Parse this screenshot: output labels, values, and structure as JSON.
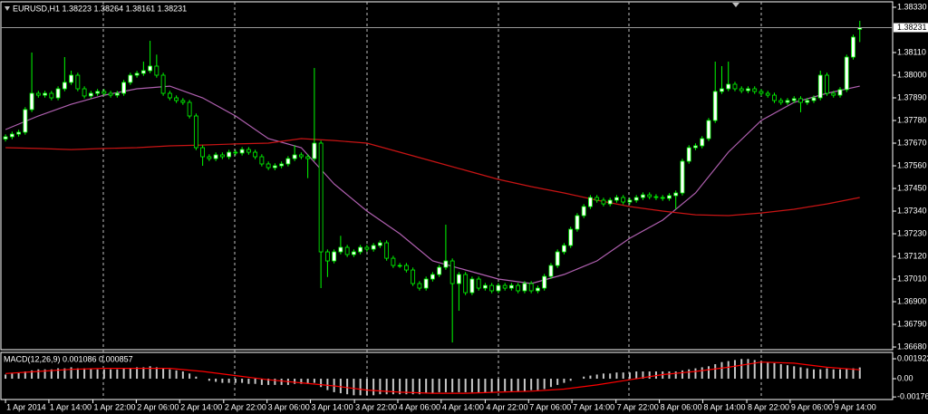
{
  "chart_data": [
    {
      "type": "candlestick",
      "title": "EURUSD,H1 1.38223 1.38264 1.38161 1.38231",
      "open": [
        1.3769,
        1.37701,
        1.37714,
        1.37723,
        1.37833,
        1.37912,
        1.37903,
        1.37912,
        1.3789,
        1.37934,
        1.37965,
        1.38,
        1.37934,
        1.37899,
        1.37912,
        1.37921,
        1.37912,
        1.37903,
        1.37912,
        1.37965,
        1.38,
        1.38009,
        1.38022,
        1.38044,
        1.38,
        1.37912,
        1.3789,
        1.37877,
        1.37868,
        1.37802,
        1.37648,
        1.37604,
        1.37595,
        1.37613,
        1.37604,
        1.37626,
        1.37622,
        1.37639,
        1.37626,
        1.37604,
        1.37569,
        1.37551,
        1.3756,
        1.37569,
        1.37595,
        1.37613,
        1.37604,
        1.37595,
        1.3767,
        1.37142,
        1.37098,
        1.37142,
        1.37164,
        1.37129,
        1.37142,
        1.37164,
        1.37155,
        1.37173,
        1.37186,
        1.37111,
        1.37076,
        1.37076,
        1.37054,
        1.36988,
        1.36966,
        1.3701,
        1.37032,
        1.37067,
        1.37098,
        1.36988,
        1.37032,
        1.36944,
        1.3701,
        1.36966,
        1.36979,
        1.36953,
        1.36979,
        1.36966,
        1.36979,
        1.36953,
        1.36988,
        1.36953,
        1.36966,
        1.37023,
        1.37076,
        1.37142,
        1.37173,
        1.37252,
        1.37318,
        1.37362,
        1.37406,
        1.37393,
        1.37375,
        1.37393,
        1.37406,
        1.37384,
        1.37393,
        1.37406,
        1.37419,
        1.3741,
        1.37406,
        1.37402,
        1.37415,
        1.37428,
        1.37582,
        1.37648,
        1.37657,
        1.37692,
        1.3778,
        1.37921,
        1.37934,
        1.37956,
        1.37934,
        1.37925,
        1.37934,
        1.37921,
        1.37912,
        1.37903,
        1.37877,
        1.37868,
        1.37877,
        1.37886,
        1.37868,
        1.37877,
        1.3789,
        1.38,
        1.37912,
        1.37903,
        1.3793,
        1.38088,
        1.38223
      ],
      "high": [
        1.37713,
        1.37726,
        1.37735,
        1.37845,
        1.3811,
        1.37924,
        1.37924,
        1.37924,
        1.37946,
        1.38088,
        1.38022,
        1.38012,
        1.37946,
        1.37924,
        1.37933,
        1.37933,
        1.37924,
        1.37924,
        1.37977,
        1.38012,
        1.38021,
        1.38066,
        1.38167,
        1.381,
        1.38012,
        1.37924,
        1.37902,
        1.37889,
        1.3788,
        1.37814,
        1.3766,
        1.37616,
        1.37625,
        1.37625,
        1.37638,
        1.37638,
        1.37651,
        1.37651,
        1.37638,
        1.37616,
        1.37581,
        1.37572,
        1.37581,
        1.37607,
        1.3766,
        1.37625,
        1.37616,
        1.38035,
        1.37682,
        1.37154,
        1.37154,
        1.3722,
        1.37176,
        1.37154,
        1.37176,
        1.37176,
        1.37185,
        1.37198,
        1.37198,
        1.37123,
        1.37088,
        1.37088,
        1.37066,
        1.37,
        1.37022,
        1.37044,
        1.37079,
        1.37274,
        1.3711,
        1.37044,
        1.37044,
        1.37022,
        1.37022,
        1.36991,
        1.36991,
        1.36991,
        1.36991,
        1.36991,
        1.36991,
        1.37,
        1.37,
        1.36978,
        1.37035,
        1.37088,
        1.37154,
        1.37185,
        1.37264,
        1.3733,
        1.37374,
        1.37418,
        1.37418,
        1.37405,
        1.37405,
        1.37418,
        1.37418,
        1.37405,
        1.37418,
        1.37431,
        1.37431,
        1.37422,
        1.37418,
        1.37427,
        1.3744,
        1.37594,
        1.3766,
        1.37669,
        1.37704,
        1.37792,
        1.38066,
        1.38044,
        1.38066,
        1.37968,
        1.37946,
        1.37946,
        1.37946,
        1.37933,
        1.37924,
        1.37915,
        1.37889,
        1.37889,
        1.37898,
        1.37898,
        1.37889,
        1.37902,
        1.38022,
        1.38012,
        1.37924,
        1.37942,
        1.381,
        1.38197,
        1.38264
      ],
      "low": [
        1.37678,
        1.37689,
        1.37702,
        1.37711,
        1.37821,
        1.37891,
        1.37891,
        1.37878,
        1.37878,
        1.37922,
        1.37953,
        1.37922,
        1.37887,
        1.37887,
        1.379,
        1.379,
        1.37891,
        1.37891,
        1.379,
        1.37953,
        1.37988,
        1.37997,
        1.3801,
        1.37988,
        1.379,
        1.37878,
        1.37865,
        1.37856,
        1.3779,
        1.37636,
        1.3756,
        1.37583,
        1.37583,
        1.37592,
        1.37592,
        1.3761,
        1.3761,
        1.37614,
        1.37592,
        1.37557,
        1.37539,
        1.37539,
        1.37548,
        1.37557,
        1.37583,
        1.37592,
        1.375,
        1.37583,
        1.36966,
        1.3702,
        1.37086,
        1.3713,
        1.37117,
        1.37117,
        1.3713,
        1.37143,
        1.37143,
        1.37161,
        1.37099,
        1.37064,
        1.37064,
        1.37042,
        1.36976,
        1.36954,
        1.36954,
        1.36998,
        1.3702,
        1.37055,
        1.36702,
        1.36856,
        1.36932,
        1.36932,
        1.36954,
        1.36954,
        1.36941,
        1.36941,
        1.36954,
        1.36954,
        1.36941,
        1.36941,
        1.36941,
        1.36941,
        1.36954,
        1.37011,
        1.37064,
        1.3713,
        1.37161,
        1.3724,
        1.37306,
        1.3735,
        1.37381,
        1.37363,
        1.37363,
        1.37381,
        1.37372,
        1.37372,
        1.37381,
        1.37394,
        1.37398,
        1.37394,
        1.3739,
        1.3739,
        1.3735,
        1.37416,
        1.3757,
        1.37636,
        1.37645,
        1.3768,
        1.37768,
        1.37909,
        1.37922,
        1.37922,
        1.37913,
        1.37913,
        1.37909,
        1.379,
        1.37891,
        1.37865,
        1.37856,
        1.37856,
        1.37865,
        1.3782,
        1.37856,
        1.37865,
        1.37878,
        1.379,
        1.37891,
        1.37891,
        1.37918,
        1.38076,
        1.38161
      ],
      "close": [
        1.37701,
        1.37714,
        1.37723,
        1.37833,
        1.37912,
        1.37903,
        1.37912,
        1.3789,
        1.37934,
        1.37965,
        1.38,
        1.37934,
        1.37899,
        1.37912,
        1.37921,
        1.37912,
        1.37903,
        1.37912,
        1.37965,
        1.38,
        1.38009,
        1.38022,
        1.38044,
        1.38,
        1.37912,
        1.3789,
        1.37877,
        1.37868,
        1.37802,
        1.37648,
        1.37604,
        1.37595,
        1.37613,
        1.37604,
        1.37626,
        1.37622,
        1.37639,
        1.37626,
        1.37604,
        1.37569,
        1.37551,
        1.3756,
        1.37569,
        1.37595,
        1.37613,
        1.37604,
        1.37595,
        1.3767,
        1.37142,
        1.37098,
        1.37142,
        1.37164,
        1.37129,
        1.37142,
        1.37164,
        1.37155,
        1.37173,
        1.37186,
        1.37111,
        1.37076,
        1.37076,
        1.37054,
        1.36988,
        1.36966,
        1.3701,
        1.37032,
        1.37067,
        1.37098,
        1.36988,
        1.37032,
        1.36944,
        1.3701,
        1.36966,
        1.36979,
        1.36953,
        1.36979,
        1.36966,
        1.36979,
        1.36953,
        1.36988,
        1.36953,
        1.36966,
        1.37023,
        1.37076,
        1.37142,
        1.37173,
        1.37252,
        1.37318,
        1.37362,
        1.37406,
        1.37393,
        1.37375,
        1.37393,
        1.37406,
        1.37384,
        1.37393,
        1.37406,
        1.37419,
        1.3741,
        1.37406,
        1.37402,
        1.37415,
        1.37428,
        1.37582,
        1.37648,
        1.37657,
        1.37692,
        1.3778,
        1.37921,
        1.37934,
        1.37956,
        1.37934,
        1.37925,
        1.37934,
        1.37921,
        1.37912,
        1.37903,
        1.37877,
        1.37868,
        1.37877,
        1.37886,
        1.37868,
        1.37877,
        1.3789,
        1.38,
        1.37912,
        1.37903,
        1.3793,
        1.38088,
        1.38185,
        1.38231
      ],
      "up_color": "#ffffff",
      "down_color": "#000000",
      "wick_color": "#00ff00",
      "lines": [
        {
          "color": "#b060b0",
          "x": [
            0,
            5,
            10,
            15,
            20,
            25,
            30,
            35,
            40,
            45,
            50,
            55,
            60,
            65,
            70,
            75,
            80,
            85,
            90,
            95,
            100,
            105,
            110,
            115,
            120,
            125,
            130
          ],
          "values": [
            1.37736,
            1.37802,
            1.37859,
            1.37903,
            1.37934,
            1.37947,
            1.3789,
            1.37802,
            1.37692,
            1.37648,
            1.37472,
            1.3734,
            1.3723,
            1.37098,
            1.37054,
            1.3701,
            1.36988,
            1.37032,
            1.37098,
            1.37208,
            1.37296,
            1.37428,
            1.37626,
            1.3778,
            1.37868,
            1.37912,
            1.37947
          ]
        },
        {
          "color": "#c81414",
          "x": [
            0,
            5,
            10,
            15,
            20,
            25,
            30,
            35,
            40,
            45,
            50,
            55,
            60,
            65,
            70,
            75,
            80,
            85,
            90,
            95,
            100,
            105,
            110,
            115,
            120,
            125,
            130
          ],
          "values": [
            1.37648,
            1.37644,
            1.37639,
            1.37644,
            1.37648,
            1.37657,
            1.37661,
            1.37666,
            1.3767,
            1.37692,
            1.37683,
            1.3767,
            1.37626,
            1.37582,
            1.37538,
            1.37494,
            1.37459,
            1.37428,
            1.37393,
            1.37362,
            1.3734,
            1.37322,
            1.37318,
            1.37331,
            1.37349,
            1.37375,
            1.37406
          ]
        }
      ],
      "xlim": [
        -0.7,
        135
      ],
      "xticks": [
        {
          "value": 0,
          "label": "1 Apr 2014"
        },
        {
          "value": 6.6,
          "label": "1 Apr 14:00"
        },
        {
          "value": 13.3,
          "label": "1 Apr 22:00"
        },
        {
          "value": 19.9,
          "label": "2 Apr 06:00"
        },
        {
          "value": 26.5,
          "label": "2 Apr 14:00"
        },
        {
          "value": 33.2,
          "label": "2 Apr 22:00"
        },
        {
          "value": 39.8,
          "label": "3 Apr 06:00"
        },
        {
          "value": 46.4,
          "label": "3 Apr 14:00"
        },
        {
          "value": 53.1,
          "label": "3 Apr 22:00"
        },
        {
          "value": 59.7,
          "label": "4 Apr 06:00"
        },
        {
          "value": 66.3,
          "label": "4 Apr 14:00"
        },
        {
          "value": 73,
          "label": "4 Apr 22:00"
        },
        {
          "value": 79.6,
          "label": "7 Apr 06:00"
        },
        {
          "value": 86.2,
          "label": "7 Apr 14:00"
        },
        {
          "value": 92.9,
          "label": "7 Apr 22:00"
        },
        {
          "value": 99.5,
          "label": "8 Apr 06:00"
        },
        {
          "value": 106.1,
          "label": "8 Apr 14:00"
        },
        {
          "value": 112.8,
          "label": "8 Apr 22:00"
        },
        {
          "value": 119.4,
          "label": "9 Apr 06:00"
        },
        {
          "value": 126,
          "label": "9 Apr 14:00"
        }
      ],
      "ylim": [
        1.36667,
        1.38352
      ],
      "yticks": [
        {
          "value": 1.3833,
          "label": "1.38330"
        },
        {
          "value": 1.3811,
          "label": "1.38110"
        },
        {
          "value": 1.38,
          "label": "1.38000"
        },
        {
          "value": 1.3789,
          "label": "1.37890"
        },
        {
          "value": 1.3778,
          "label": "1.37780"
        },
        {
          "value": 1.3767,
          "label": "1.37670"
        },
        {
          "value": 1.3756,
          "label": "1.37560"
        },
        {
          "value": 1.3745,
          "label": "1.37450"
        },
        {
          "value": 1.3734,
          "label": "1.37340"
        },
        {
          "value": 1.3723,
          "label": "1.37230"
        },
        {
          "value": 1.3712,
          "label": "1.37120"
        },
        {
          "value": 1.3701,
          "label": "1.37010"
        },
        {
          "value": 1.369,
          "label": "1.36900"
        },
        {
          "value": 1.3679,
          "label": "1.36790"
        },
        {
          "value": 1.3668,
          "label": "1.36680"
        }
      ],
      "last_price": {
        "value": 1.38231,
        "label": "1.38231"
      }
    },
    {
      "type": "macd",
      "title": "MACD(12,26,9) 0.001086 0.000857",
      "color": "#c8c8c8",
      "values": [
        0.0004,
        0.0005,
        0.0006,
        0.0007,
        0.0008,
        0.0009,
        0.0009,
        0.0009,
        0.001,
        0.001,
        0.0011,
        0.001,
        0.001,
        0.001,
        0.0009,
        0.0009,
        0.0009,
        0.0009,
        0.001,
        0.001,
        0.0011,
        0.0011,
        0.0012,
        0.0011,
        0.001,
        0.0009,
        0.0008,
        0.0007,
        0.0005,
        0.0002,
        0,
        -0.0002,
        -0.0003,
        -0.0004,
        -0.0004,
        -0.0004,
        -0.0004,
        -0.0005,
        -0.0005,
        -0.0006,
        -0.0006,
        -0.0006,
        -0.0006,
        -0.0006,
        -0.0005,
        -0.0005,
        -0.0005,
        -0.0004,
        -0.0008,
        -0.0011,
        -0.0013,
        -0.0014,
        -0.0015,
        -0.0016,
        -0.0016,
        -0.0016,
        -0.0016,
        -0.0015,
        -0.0015,
        -0.0015,
        -0.0015,
        -0.0015,
        -0.0015,
        -0.0015,
        -0.0014,
        -0.0014,
        -0.0013,
        -0.0013,
        -0.0013,
        -0.0013,
        -0.0013,
        -0.0013,
        -0.0013,
        -0.0013,
        -0.0013,
        -0.0012,
        -0.0012,
        -0.0012,
        -0.0012,
        -0.0012,
        -0.0011,
        -0.0011,
        -0.001,
        -0.0008,
        -0.0006,
        -0.0004,
        -0.0002,
        0,
        0.0002,
        0.0003,
        0.0004,
        0.0005,
        0.0005,
        0.0006,
        0.0006,
        0.0006,
        0.0007,
        0.0007,
        0.0007,
        0.0007,
        0.0007,
        0.0007,
        0.0007,
        0.0008,
        0.0009,
        0.001,
        0.0011,
        0.0012,
        0.0014,
        0.0016,
        0.0017,
        0.0018,
        0.0019,
        0.0019,
        0.0018,
        0.0017,
        0.0016,
        0.0015,
        0.0014,
        0.0013,
        0.0012,
        0.0011,
        0.001,
        0.0009,
        0.0009,
        0.001,
        0.0009,
        0.0009,
        0.001,
        0.001,
        0.001086
      ],
      "signal": {
        "color": "#ff0000",
        "x": [
          0,
          5,
          10,
          15,
          20,
          25,
          30,
          35,
          40,
          45,
          50,
          55,
          60,
          65,
          70,
          75,
          80,
          85,
          90,
          95,
          100,
          105,
          110,
          115,
          120,
          125,
          130
        ],
        "values": [
          0.0005,
          0.0007,
          0.0009,
          0.001,
          0.001,
          0.001,
          0.0007,
          0.0003,
          -0.0001,
          -0.0004,
          -0.0007,
          -0.0011,
          -0.0013,
          -0.0014,
          -0.0014,
          -0.0013,
          -0.0012,
          -0.001,
          -0.0006,
          -0.0001,
          0.0004,
          0.0007,
          0.0011,
          0.0016,
          0.0015,
          0.0011,
          0.000857
        ]
      },
      "ylim": [
        -0.00192,
        0.00245
      ],
      "yticks": [
        0.001922,
        {
          "value": 0,
          "label": "0.00"
        },
        -0.00176
      ]
    }
  ]
}
